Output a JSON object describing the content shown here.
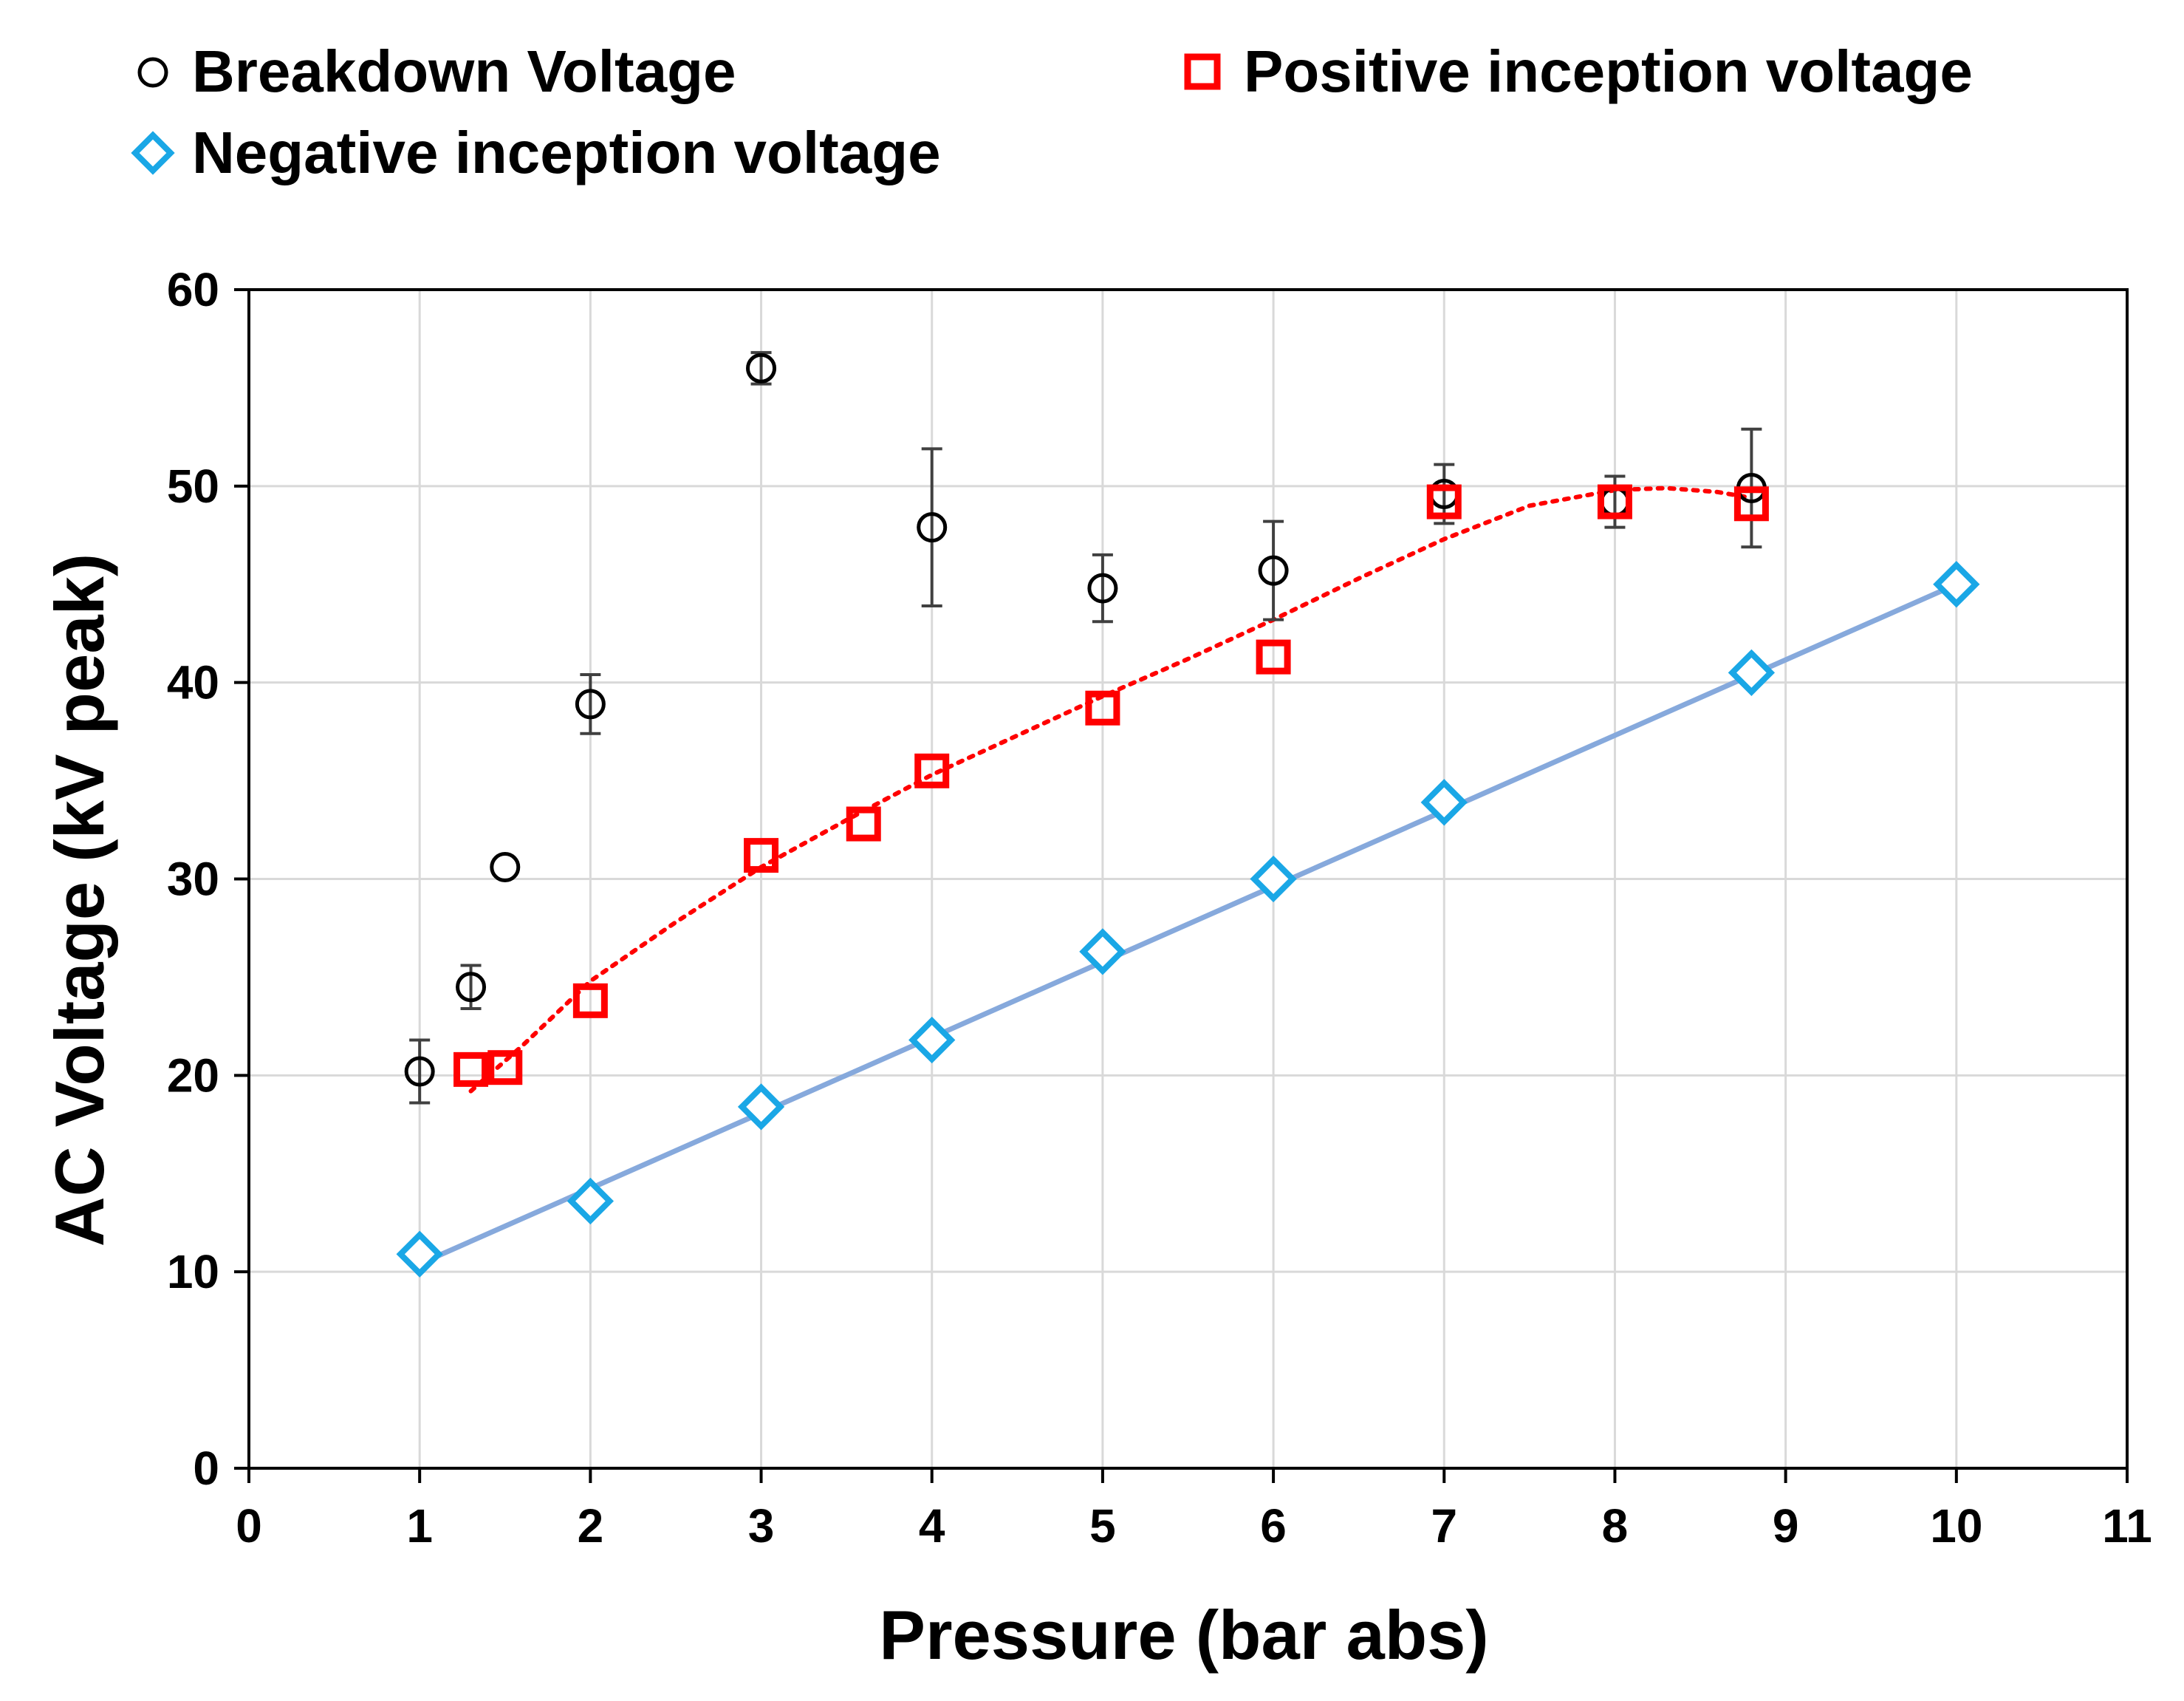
{
  "chart_data": {
    "type": "scatter",
    "title": "",
    "xlabel": "Pressure (bar abs)",
    "ylabel": "AC Voltage (kV peak)",
    "xlim": [
      0,
      11
    ],
    "ylim": [
      0,
      60
    ],
    "xticks": [
      0,
      1,
      2,
      3,
      4,
      5,
      6,
      7,
      8,
      9,
      10,
      11
    ],
    "yticks": [
      0,
      10,
      20,
      30,
      40,
      50,
      60
    ],
    "grid": true,
    "legend_position": "top",
    "series": [
      {
        "name": "Breakdown Voltage",
        "marker": "circle",
        "color": "#000000",
        "error_bar_color": "#404040",
        "points": [
          {
            "x": 1,
            "y": 20.2,
            "err_low": 1.6,
            "err_high": 1.6
          },
          {
            "x": 1.3,
            "y": 24.5,
            "err_low": 1.1,
            "err_high": 1.1
          },
          {
            "x": 1.5,
            "y": 30.6,
            "err_low": 0,
            "err_high": 0
          },
          {
            "x": 2,
            "y": 38.9,
            "err_low": 1.5,
            "err_high": 1.5
          },
          {
            "x": 3,
            "y": 56.0,
            "err_low": 0.8,
            "err_high": 0.8
          },
          {
            "x": 4,
            "y": 47.9,
            "err_low": 4.0,
            "err_high": 4.0
          },
          {
            "x": 5,
            "y": 44.8,
            "err_low": 1.7,
            "err_high": 1.7
          },
          {
            "x": 6,
            "y": 45.7,
            "err_low": 2.5,
            "err_high": 2.5
          },
          {
            "x": 7,
            "y": 49.6,
            "err_low": 1.5,
            "err_high": 1.5
          },
          {
            "x": 8,
            "y": 49.2,
            "err_low": 1.3,
            "err_high": 1.3
          },
          {
            "x": 8.8,
            "y": 49.9,
            "err_low": 3.0,
            "err_high": 3.0
          }
        ]
      },
      {
        "name": "Positive inception voltage",
        "marker": "square",
        "color": "#ff0000",
        "trendline": "polynomial",
        "trendline_color": "#ff0000",
        "points": [
          {
            "x": 1.3,
            "y": 20.3
          },
          {
            "x": 1.5,
            "y": 20.4
          },
          {
            "x": 2,
            "y": 23.8
          },
          {
            "x": 3,
            "y": 31.2
          },
          {
            "x": 3.6,
            "y": 32.8
          },
          {
            "x": 4,
            "y": 35.5
          },
          {
            "x": 5,
            "y": 38.7
          },
          {
            "x": 6,
            "y": 41.3
          },
          {
            "x": 7,
            "y": 49.2
          },
          {
            "x": 8,
            "y": 49.2
          },
          {
            "x": 8.8,
            "y": 49.1
          }
        ],
        "trend_points": [
          {
            "x": 1.3,
            "y": 19.2
          },
          {
            "x": 1.6,
            "y": 21.5
          },
          {
            "x": 2,
            "y": 24.8
          },
          {
            "x": 2.5,
            "y": 27.8
          },
          {
            "x": 3,
            "y": 30.6
          },
          {
            "x": 3.5,
            "y": 33.0
          },
          {
            "x": 4,
            "y": 35.3
          },
          {
            "x": 4.5,
            "y": 37.3
          },
          {
            "x": 5,
            "y": 39.3
          },
          {
            "x": 5.5,
            "y": 41.2
          },
          {
            "x": 6,
            "y": 43.2
          },
          {
            "x": 6.5,
            "y": 45.3
          },
          {
            "x": 7,
            "y": 47.3
          },
          {
            "x": 7.5,
            "y": 49.0
          },
          {
            "x": 8,
            "y": 49.8
          },
          {
            "x": 8.3,
            "y": 49.9
          },
          {
            "x": 8.6,
            "y": 49.7
          },
          {
            "x": 8.8,
            "y": 49.4
          }
        ]
      },
      {
        "name": "Negative inception voltage",
        "marker": "diamond",
        "color": "#1aa7e6",
        "trendline": "linear",
        "trendline_color": "#86a9dc",
        "points": [
          {
            "x": 1,
            "y": 10.9
          },
          {
            "x": 2,
            "y": 13.6
          },
          {
            "x": 3,
            "y": 18.4
          },
          {
            "x": 4,
            "y": 21.8
          },
          {
            "x": 5,
            "y": 26.3
          },
          {
            "x": 6,
            "y": 30.0
          },
          {
            "x": 7,
            "y": 33.9
          },
          {
            "x": 8.8,
            "y": 40.5
          },
          {
            "x": 10,
            "y": 45.0
          }
        ],
        "trend_points": [
          {
            "x": 1,
            "y": 10.4
          },
          {
            "x": 10,
            "y": 45.0
          }
        ]
      }
    ]
  }
}
